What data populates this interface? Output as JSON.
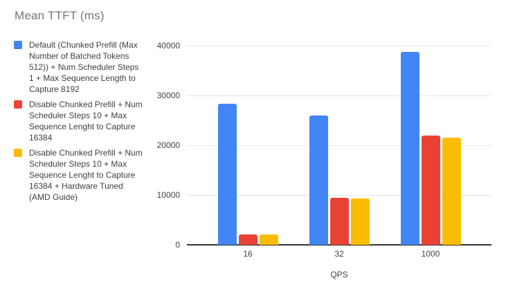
{
  "chart_data": {
    "type": "bar",
    "title": "Mean TTFT (ms)",
    "xlabel": "QPS",
    "ylabel": "",
    "categories": [
      "16",
      "32",
      "1000"
    ],
    "series": [
      {
        "name": "Default (Chunked Prefill (Max Number of Batched Tokens 512)) + Num Scheduler Steps 1 + Max Sequence Length to Capture 8192",
        "color": "#4285F4",
        "values": [
          28400,
          26000,
          38800
        ]
      },
      {
        "name": "Disable Chunked Prefill + Num Scheduler Steps 10 + Max Sequence Lenght to Capture 16384",
        "color": "#EA4335",
        "values": [
          2100,
          9500,
          21900
        ]
      },
      {
        "name": "Disable Chunked Prefill + Num Scheduler Steps 10 + Max Sequence Lenght to Capture 16384 + Hardware Tuned (AMD Guide)",
        "color": "#FBBC04",
        "values": [
          2100,
          9300,
          21500
        ]
      }
    ],
    "ylim": [
      0,
      40000
    ],
    "yticks": [
      0,
      10000,
      20000,
      30000,
      40000
    ],
    "grid": true,
    "legend_position": "left",
    "group_center_fractions": [
      0.2,
      0.5,
      0.8
    ]
  }
}
